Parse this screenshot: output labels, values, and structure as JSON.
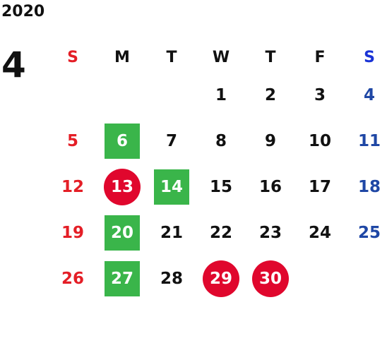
{
  "year": "2020",
  "month": "4",
  "weekdays": [
    "S",
    "M",
    "T",
    "W",
    "T",
    "F",
    "S"
  ],
  "weeks": [
    [
      "",
      "",
      "",
      "1",
      "2",
      "3",
      "4"
    ],
    [
      "5",
      "6",
      "7",
      "8",
      "9",
      "10",
      "11"
    ],
    [
      "12",
      "13",
      "14",
      "15",
      "16",
      "17",
      "18"
    ],
    [
      "19",
      "20",
      "21",
      "22",
      "23",
      "24",
      "25"
    ],
    [
      "26",
      "27",
      "28",
      "29",
      "30",
      "",
      ""
    ]
  ],
  "colors": {
    "sunday": "#e41e26",
    "saturday": "#1f47a5",
    "saturday_header": "#1a33d6",
    "green_mark": "#3ab54a",
    "red_mark": "#e0072d"
  },
  "marked_days": {
    "green_square": [
      "6",
      "14",
      "20",
      "27"
    ],
    "red_circle": [
      "13",
      "29",
      "30"
    ]
  }
}
